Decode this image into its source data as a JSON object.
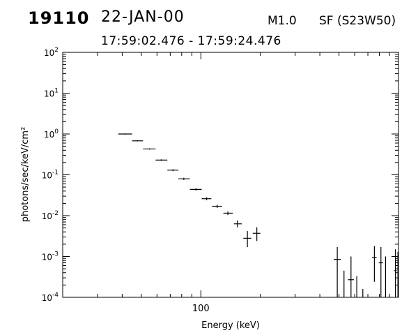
{
  "header": {
    "event_id": "19110",
    "date": "22-JAN-00",
    "flare_class": "M1.0",
    "flare_location": "SF (S23W50)",
    "time_range": "17:59:02.476 - 17:59:24.476"
  },
  "chart_data": {
    "type": "scatter",
    "title": "",
    "xlabel": "Energy (keV)",
    "ylabel": "photons/sec/keV/cm²",
    "xscale": "log",
    "yscale": "log",
    "xlim": [
      20,
      1000
    ],
    "ylim": [
      0.0001,
      100
    ],
    "xticks": [
      {
        "value": 100,
        "label": "100"
      }
    ],
    "yticks": [
      {
        "value": 0.0001,
        "base": "10",
        "exp": "-4"
      },
      {
        "value": 0.001,
        "base": "10",
        "exp": "-3"
      },
      {
        "value": 0.01,
        "base": "10",
        "exp": "-2"
      },
      {
        "value": 0.1,
        "base": "10",
        "exp": "-1"
      },
      {
        "value": 1,
        "base": "10",
        "exp": "0"
      },
      {
        "value": 10,
        "base": "10",
        "exp": "1"
      },
      {
        "value": 100,
        "base": "10",
        "exp": "2"
      }
    ],
    "grid": false,
    "style": {
      "axis_color": "#000000",
      "marker_color": "#000000"
    },
    "series": [
      {
        "marker": "error-cross",
        "points": [
          {
            "x": 41.5,
            "x_lo": 38.2,
            "x_hi": 44.9,
            "y": 1.0,
            "y_lo": 0.97,
            "y_hi": 1.03
          },
          {
            "x": 47.8,
            "x_lo": 44.9,
            "x_hi": 51.0,
            "y": 0.68,
            "y_lo": 0.66,
            "y_hi": 0.7
          },
          {
            "x": 55.0,
            "x_lo": 51.0,
            "x_hi": 59.0,
            "y": 0.43,
            "y_lo": 0.415,
            "y_hi": 0.445
          },
          {
            "x": 63.0,
            "x_lo": 59.0,
            "x_hi": 67.7,
            "y": 0.23,
            "y_lo": 0.22,
            "y_hi": 0.24
          },
          {
            "x": 72.3,
            "x_lo": 67.7,
            "x_hi": 77.0,
            "y": 0.13,
            "y_lo": 0.123,
            "y_hi": 0.137
          },
          {
            "x": 82.0,
            "x_lo": 77.0,
            "x_hi": 88.0,
            "y": 0.08,
            "y_lo": 0.075,
            "y_hi": 0.085
          },
          {
            "x": 94.5,
            "x_lo": 88.0,
            "x_hi": 101.0,
            "y": 0.044,
            "y_lo": 0.041,
            "y_hi": 0.047
          },
          {
            "x": 107.0,
            "x_lo": 101.0,
            "x_hi": 113.0,
            "y": 0.026,
            "y_lo": 0.024,
            "y_hi": 0.028
          },
          {
            "x": 121.0,
            "x_lo": 114.0,
            "x_hi": 128.0,
            "y": 0.017,
            "y_lo": 0.0155,
            "y_hi": 0.0185
          },
          {
            "x": 137.0,
            "x_lo": 130.0,
            "x_hi": 145.0,
            "y": 0.0115,
            "y_lo": 0.0103,
            "y_hi": 0.0127
          },
          {
            "x": 153.0,
            "x_lo": 147.0,
            "x_hi": 161.0,
            "y": 0.0063,
            "y_lo": 0.0052,
            "y_hi": 0.0076
          },
          {
            "x": 172.0,
            "x_lo": 164.0,
            "x_hi": 180.0,
            "y": 0.0028,
            "y_lo": 0.0017,
            "y_hi": 0.0042
          },
          {
            "x": 192.0,
            "x_lo": 183.0,
            "x_hi": 200.0,
            "y": 0.0037,
            "y_lo": 0.0024,
            "y_hi": 0.0052
          },
          {
            "x": 490.0,
            "x_lo": 470.0,
            "x_hi": 510.0,
            "y": 0.00085,
            "y_lo": 0.0001,
            "y_hi": 0.0017
          },
          {
            "x": 530.0,
            "x_lo": 530.0,
            "x_hi": 530.0,
            "y": 0.0002,
            "y_lo": 0.0001,
            "y_hi": 0.00045
          },
          {
            "x": 575.0,
            "x_lo": 555.0,
            "x_hi": 595.0,
            "y": 0.00027,
            "y_lo": 0.0001,
            "y_hi": 0.001
          },
          {
            "x": 615.0,
            "x_lo": 615.0,
            "x_hi": 615.0,
            "y": 0.0002,
            "y_lo": 0.0001,
            "y_hi": 0.00033
          },
          {
            "x": 660.0,
            "x_lo": 660.0,
            "x_hi": 660.0,
            "y": 0.00013,
            "y_lo": 0.0001,
            "y_hi": 0.00016
          },
          {
            "x": 755.0,
            "x_lo": 735.0,
            "x_hi": 775.0,
            "y": 0.00095,
            "y_lo": 0.00024,
            "y_hi": 0.0018
          },
          {
            "x": 815.0,
            "x_lo": 795.0,
            "x_hi": 835.0,
            "y": 0.0007,
            "y_lo": 0.0001,
            "y_hi": 0.0017
          },
          {
            "x": 860.0,
            "x_lo": 860.0,
            "x_hi": 860.0,
            "y": 0.0005,
            "y_lo": 0.0001,
            "y_hi": 0.001
          },
          {
            "x": 965.0,
            "x_lo": 950.0,
            "x_hi": 980.0,
            "y": 0.00045,
            "y_lo": 0.0001,
            "y_hi": 0.0015
          },
          {
            "x": 993.0,
            "x_lo": 985.0,
            "x_hi": 1000.0,
            "y": 0.0007,
            "y_lo": 0.0001,
            "y_hi": 0.0013
          }
        ]
      }
    ]
  }
}
